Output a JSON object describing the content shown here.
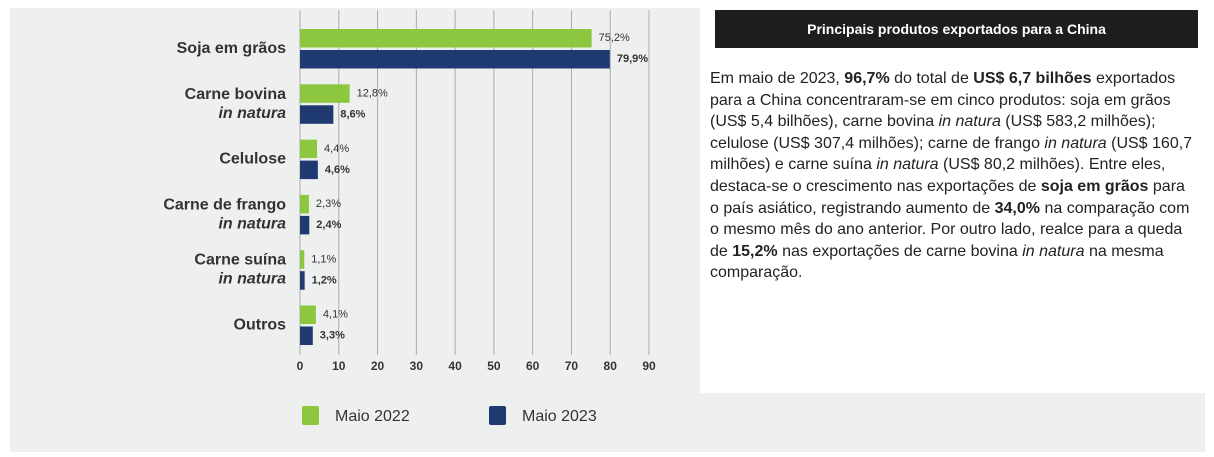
{
  "chart_data": {
    "type": "bar",
    "orientation": "horizontal",
    "categories": [
      [
        "Soja em grãos"
      ],
      [
        "Carne bovina",
        "in natura"
      ],
      [
        "Celulose"
      ],
      [
        "Carne de frango",
        "in natura"
      ],
      [
        "Carne suína",
        "in natura"
      ],
      [
        "Outros"
      ]
    ],
    "series": [
      {
        "name": "Maio 2022",
        "color": "#8dc63f",
        "values": [
          75.2,
          12.8,
          4.4,
          2.3,
          1.1,
          4.1
        ],
        "value_labels": [
          "75,2%",
          "12,8%",
          "4,4%",
          "2,3%",
          "1,1%",
          "4,1%"
        ]
      },
      {
        "name": "Maio 2023",
        "color": "#1f3a70",
        "values": [
          79.9,
          8.6,
          4.6,
          2.4,
          1.2,
          3.3
        ],
        "value_labels": [
          "79,9%",
          "8,6%",
          "4,6%",
          "2,4%",
          "1,2%",
          "3,3%"
        ]
      }
    ],
    "xlim": [
      0,
      90
    ],
    "xticks": [
      0,
      10,
      20,
      30,
      40,
      50,
      60,
      70,
      80,
      90
    ],
    "grid": true,
    "legend": "bottom"
  },
  "text_panel": {
    "title": "Principais produtos exportados para a China",
    "paragraph": [
      {
        "text": "Em maio de 2023, "
      },
      {
        "text": "96,7%",
        "style": "bold"
      },
      {
        "text": " do total de "
      },
      {
        "text": "US$ 6,7 bilhões",
        "style": "bold"
      },
      {
        "text": " exportados para a China concentraram-se em cinco produtos: soja em grãos (US$ 5,4 bilhões), carne bovina "
      },
      {
        "text": "in natura",
        "style": "italic"
      },
      {
        "text": " (US$ 583,2 milhões); celulose (US$ 307,4 milhões); carne de frango "
      },
      {
        "text": "in natura",
        "style": "italic"
      },
      {
        "text": " (US$ 160,7 milhões) e carne suína "
      },
      {
        "text": "in natura",
        "style": "italic"
      },
      {
        "text": " (US$ 80,2 milhões). Entre eles, destaca-se o crescimento nas exportações de "
      },
      {
        "text": "soja em grãos",
        "style": "bold"
      },
      {
        "text": " para o país asiático, registrando aumento de "
      },
      {
        "text": "34,0%",
        "style": "bold"
      },
      {
        "text": " na comparação com o mesmo mês do ano anterior. Por outro lado, realce para a queda de "
      },
      {
        "text": "15,2%",
        "style": "bold"
      },
      {
        "text": " nas exportações de carne bovina "
      },
      {
        "text": "in natura",
        "style": "italic"
      },
      {
        "text": " na mesma comparação."
      }
    ]
  }
}
